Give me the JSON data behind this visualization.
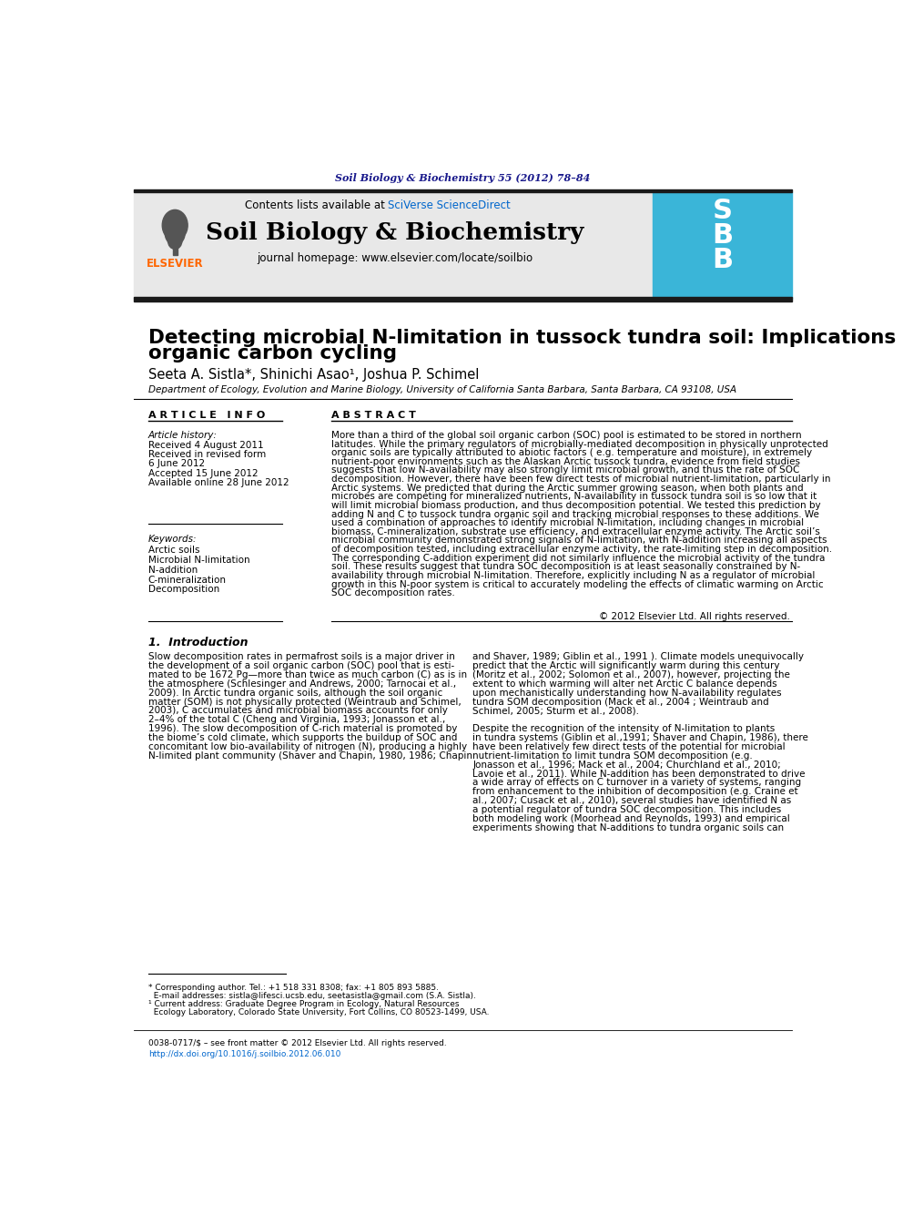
{
  "journal_ref": "Soil Biology & Biochemistry 55 (2012) 78–84",
  "journal_ref_color": "#1a1a8c",
  "sciverse_color": "#0066cc",
  "journal_title": "Soil Biology & Biochemistry",
  "journal_homepage": "journal homepage: www.elsevier.com/locate/soilbio",
  "header_bg_color": "#e8e8e8",
  "thick_bar_color": "#1a1a1a",
  "article_title_line1": "Detecting microbial N-limitation in tussock tundra soil: Implications for Arctic soil",
  "article_title_line2": "organic carbon cycling",
  "authors": "Seeta A. Sistla*, Shinichi Asao¹, Joshua P. Schimel",
  "affiliation": "Department of Ecology, Evolution and Marine Biology, University of California Santa Barbara, Santa Barbara, CA 93108, USA",
  "article_info_header": "A R T I C L E   I N F O",
  "abstract_header": "A B S T R A C T",
  "article_history_label": "Article history:",
  "received_1": "Received 4 August 2011",
  "received_revised": "Received in revised form",
  "revised_date": "6 June 2012",
  "accepted": "Accepted 15 June 2012",
  "available": "Available online 28 June 2012",
  "keywords_label": "Keywords:",
  "keywords": [
    "Arctic soils",
    "Microbial N-limitation",
    "N-addition",
    "C-mineralization",
    "Decomposition"
  ],
  "abstract_lines": [
    "More than a third of the global soil organic carbon (SOC) pool is estimated to be stored in northern",
    "latitudes. While the primary regulators of microbially-mediated decomposition in physically unprotected",
    "organic soils are typically attributed to abiotic factors ( e.g. temperature and moisture), in extremely",
    "nutrient-poor environments such as the Alaskan Arctic tussock tundra, evidence from field studies",
    "suggests that low N-availability may also strongly limit microbial growth, and thus the rate of SOC",
    "decomposition. However, there have been few direct tests of microbial nutrient-limitation, particularly in",
    "Arctic systems. We predicted that during the Arctic summer growing season, when both plants and",
    "microbes are competing for mineralized nutrients, N-availability in tussock tundra soil is so low that it",
    "will limit microbial biomass production, and thus decomposition potential. We tested this prediction by",
    "adding N and C to tussock tundra organic soil and tracking microbial responses to these additions. We",
    "used a combination of approaches to identify microbial N-limitation, including changes in microbial",
    "biomass, C-mineralization, substrate use efficiency, and extracellular enzyme activity. The Arctic soil’s",
    "microbial community demonstrated strong signals of N-limitation, with N-addition increasing all aspects",
    "of decomposition tested, including extracellular enzyme activity, the rate-limiting step in decomposition.",
    "The corresponding C-addition experiment did not similarly influence the microbial activity of the tundra",
    "soil. These results suggest that tundra SOC decomposition is at least seasonally constrained by N-",
    "availability through microbial N-limitation. Therefore, explicitly including N as a regulator of microbial",
    "growth in this N-poor system is critical to accurately modeling the effects of climatic warming on Arctic",
    "SOC decomposition rates."
  ],
  "copyright_text": "© 2012 Elsevier Ltd. All rights reserved.",
  "intro_header": "1.  Introduction",
  "intro_col1_lines": [
    "Slow decomposition rates in permafrost soils is a major driver in",
    "the development of a soil organic carbon (SOC) pool that is esti-",
    "mated to be 1672 Pg—more than twice as much carbon (C) as is in",
    "the atmosphere (Schlesinger and Andrews, 2000; Tarnocai et al.,",
    "2009). In Arctic tundra organic soils, although the soil organic",
    "matter (SOM) is not physically protected (Weintraub and Schimel,",
    "2003), C accumulates and microbial biomass accounts for only",
    "2–4% of the total C (Cheng and Virginia, 1993; Jonasson et al.,",
    "1996). The slow decomposition of C-rich material is promoted by",
    "the biome’s cold climate, which supports the buildup of SOC and",
    "concomitant low bio-availability of nitrogen (N), producing a highly",
    "N-limited plant community (Shaver and Chapin, 1980, 1986; Chapin"
  ],
  "intro_col2_lines": [
    "and Shaver, 1989; Giblin et al., 1991 ). Climate models unequivocally",
    "predict that the Arctic will significantly warm during this century",
    "(Moritz et al., 2002; Solomon et al., 2007), however, projecting the",
    "extent to which warming will alter net Arctic C balance depends",
    "upon mechanistically understanding how N-availability regulates",
    "tundra SOM decomposition (Mack et al., 2004 ; Weintraub and",
    "Schimel, 2005; Sturm et al., 2008).",
    "",
    "Despite the recognition of the intensity of N-limitation to plants",
    "in tundra systems (Giblin et al.,1991; Shaver and Chapin, 1986), there",
    "have been relatively few direct tests of the potential for microbial",
    "nutrient-limitation to limit tundra SOM decomposition (e.g.",
    "Jonasson et al., 1996; Mack et al., 2004; Churchland et al., 2010;",
    "Lavoie et al., 2011). While N-addition has been demonstrated to drive",
    "a wide array of effects on C turnover in a variety of systems, ranging",
    "from enhancement to the inhibition of decomposition (e.g. Craine et",
    "al., 2007; Cusack et al., 2010), several studies have identified N as",
    "a potential regulator of tundra SOC decomposition. This includes",
    "both modeling work (Moorhead and Reynolds, 1993) and empirical",
    "experiments showing that N-additions to tundra organic soils can"
  ],
  "footnote_lines": [
    "* Corresponding author. Tel.: +1 518 331 8308; fax: +1 805 893 5885.",
    "  E-mail addresses: sistla@lifesci.ucsb.edu, seetasistla@gmail.com (S.A. Sistla).",
    "¹ Current address: Graduate Degree Program in Ecology, Natural Resources",
    "  Ecology Laboratory, Colorado State University, Fort Collins, CO 80523-1499, USA."
  ],
  "issn_text": "0038-0717/$ – see front matter © 2012 Elsevier Ltd. All rights reserved.",
  "doi_text": "http://dx.doi.org/10.1016/j.soilbio.2012.06.010",
  "elsevier_color": "#ff6600",
  "sbb_bg_color": "#3ab5d8"
}
